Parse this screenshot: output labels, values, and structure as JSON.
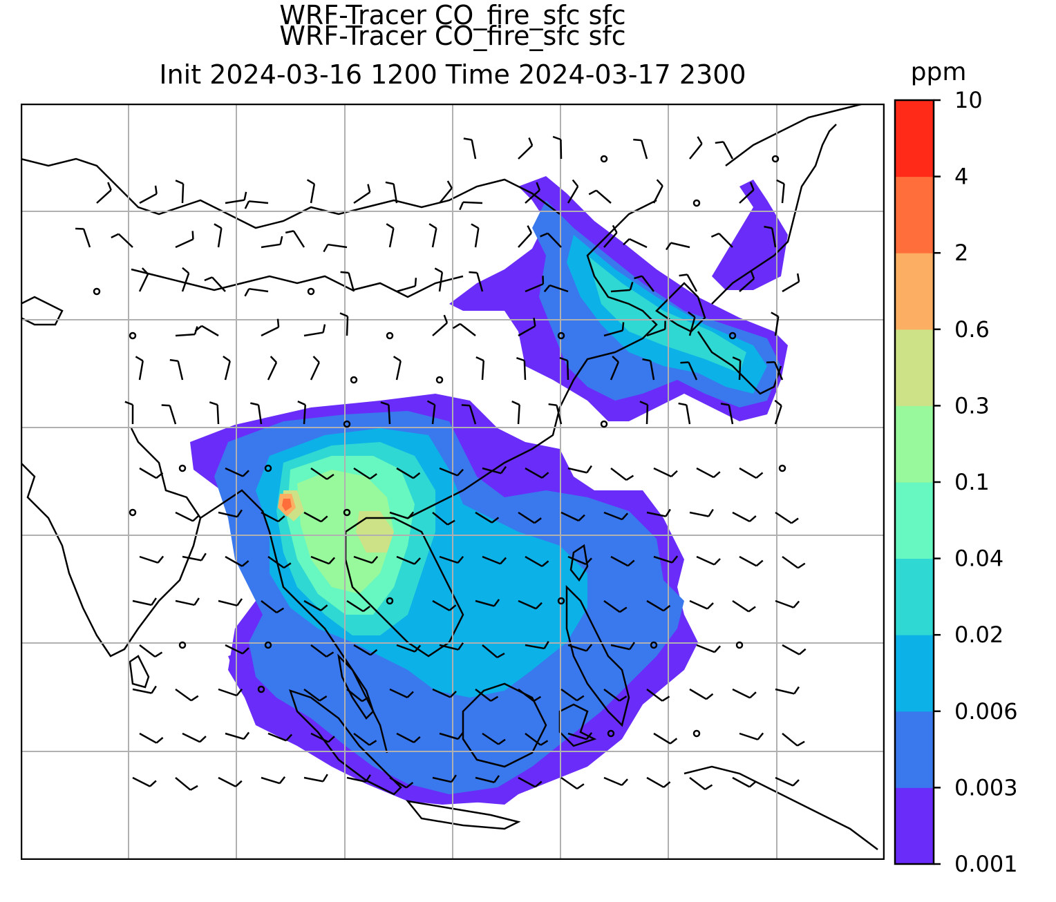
{
  "title": {
    "line1": "WRF-Tracer CO_fire_sfc sfc",
    "line2": "Init 2024-03-16 1200 Time 2024-03-17 2300"
  },
  "colorbar": {
    "unit": "ppm",
    "levels": [
      "0.001",
      "0.003",
      "0.006",
      "0.02",
      "0.04",
      "0.1",
      "0.3",
      "0.6",
      "2",
      "4",
      "10"
    ],
    "colors": [
      "#6a2cf8",
      "#3a78ee",
      "#0cb1e8",
      "#2fd8d2",
      "#66f8c0",
      "#98f89c",
      "#cde186",
      "#fcae63",
      "#ff6e3b",
      "#ff2a17"
    ]
  },
  "map": {
    "background": "#ffffff",
    "coastline_color": "#000000",
    "gridline_color": "#b0b0b0",
    "grid": true,
    "barb_color": "#000000"
  }
}
